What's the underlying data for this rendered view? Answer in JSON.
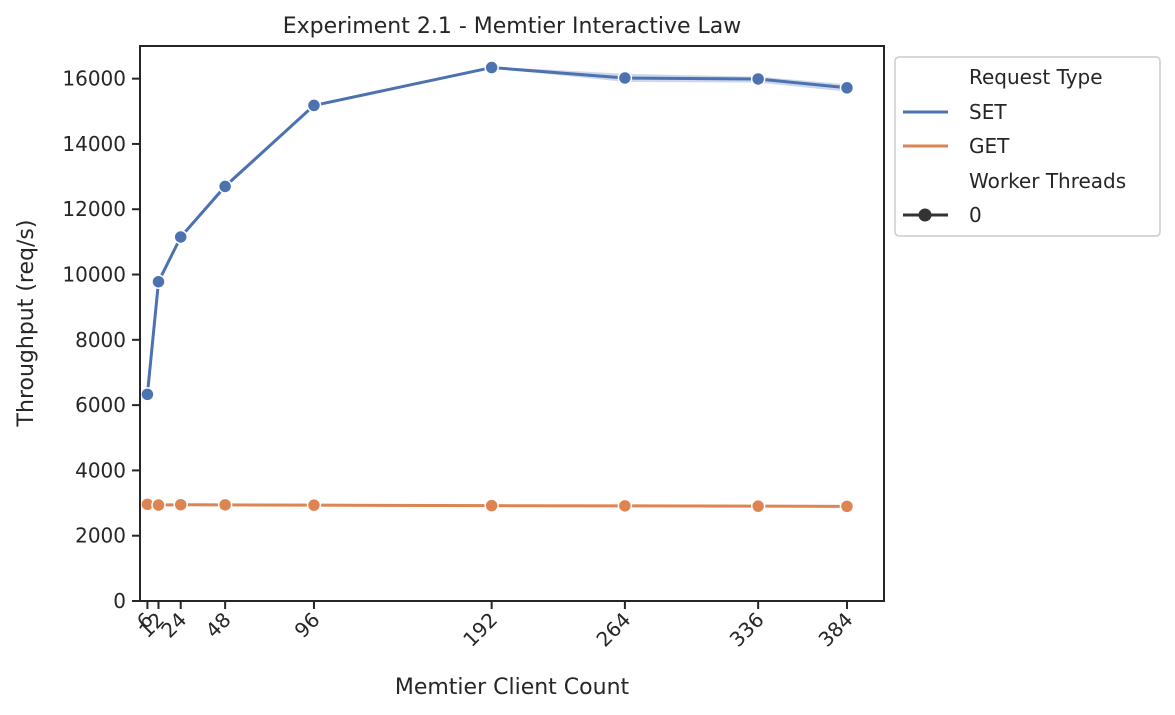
{
  "chart_data": {
    "type": "line",
    "title": "Experiment 2.1 - Memtier Interactive Law",
    "xlabel": "Memtier Client Count",
    "ylabel": "Throughput (req/s)",
    "x": [
      6,
      12,
      24,
      48,
      96,
      192,
      264,
      336,
      384
    ],
    "x_tick_labels": [
      "6",
      "12",
      "24",
      "48",
      "96",
      "192",
      "264",
      "336",
      "384"
    ],
    "xlim": [
      2,
      404
    ],
    "ylim": [
      0,
      17000
    ],
    "y_ticks": [
      0,
      2000,
      4000,
      6000,
      8000,
      10000,
      12000,
      14000,
      16000
    ],
    "y_tick_labels": [
      "0",
      "2000",
      "4000",
      "6000",
      "8000",
      "10000",
      "12000",
      "14000",
      "16000"
    ],
    "grid": false,
    "legend_position": "outside-top-right",
    "legend": {
      "hue_title": "Request Type",
      "style_title": "Worker Threads",
      "style_entries": [
        "0"
      ]
    },
    "series": [
      {
        "name": "SET",
        "color": "#4c72b0",
        "band_color": "#b9c8e6",
        "values": [
          6330,
          9780,
          11150,
          12700,
          15180,
          16340,
          16020,
          15990,
          15720
        ],
        "low": [
          6200,
          9700,
          11100,
          12650,
          15130,
          16310,
          15900,
          15880,
          15600
        ],
        "high": [
          6380,
          9850,
          11220,
          12780,
          15210,
          16370,
          16150,
          16060,
          15830
        ]
      },
      {
        "name": "GET",
        "color": "#dd8452",
        "values": [
          2960,
          2940,
          2950,
          2945,
          2935,
          2920,
          2915,
          2905,
          2900
        ]
      }
    ]
  }
}
